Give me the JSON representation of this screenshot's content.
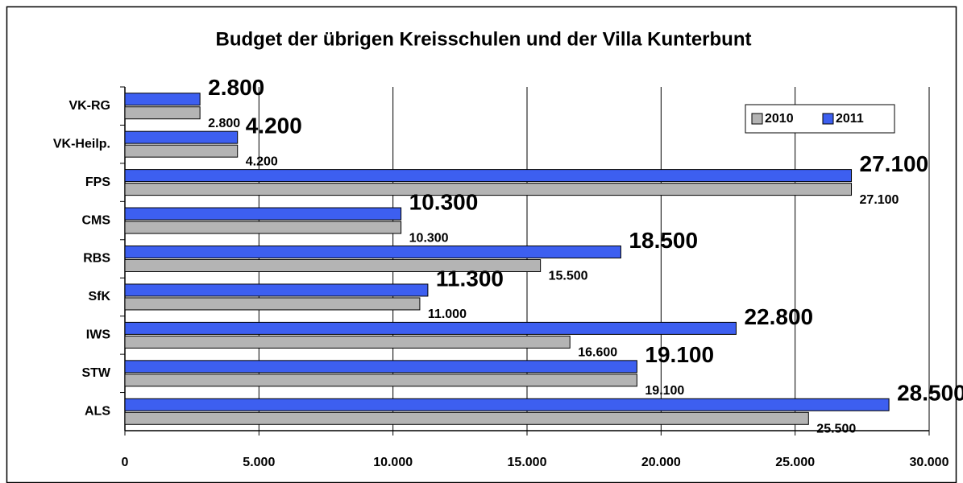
{
  "chart_data": {
    "type": "bar",
    "orientation": "horizontal",
    "title": "Budget der übrigen Kreisschulen und der Villa Kunterbunt",
    "categories": [
      "VK-RG",
      "VK-Heilp.",
      "FPS",
      "CMS",
      "RBS",
      "SfK",
      "IWS",
      "STW",
      "ALS"
    ],
    "series": [
      {
        "name": "2010",
        "color": "#b4b4b4",
        "values": [
          2800,
          4200,
          27100,
          10300,
          15500,
          11000,
          16600,
          19100,
          25500
        ],
        "value_labels": [
          "2.800",
          "4.200",
          "27.100",
          "10.300",
          "15.500",
          "11.000",
          "16.600",
          "19.100",
          "25.500"
        ]
      },
      {
        "name": "2011",
        "color": "#3d5ff0",
        "values": [
          2800,
          4200,
          27100,
          10300,
          18500,
          11300,
          22800,
          19100,
          28500
        ],
        "value_labels": [
          "2.800",
          "4.200",
          "27.100",
          "10.300",
          "18.500",
          "11.300",
          "22.800",
          "19.100",
          "28.500"
        ]
      }
    ],
    "xlim": [
      0,
      30000
    ],
    "xticks": [
      0,
      {
        "value": 5000,
        "label": "5.000"
      },
      {
        "value": 10000,
        "label": "10.000"
      },
      {
        "value": 15000,
        "label": "15.000"
      },
      {
        "value": 20000,
        "label": "20.000"
      },
      {
        "value": 25000,
        "label": "25.000"
      },
      {
        "value": 30000,
        "label": "30.000"
      }
    ],
    "grid": true,
    "legend": "top-right"
  }
}
